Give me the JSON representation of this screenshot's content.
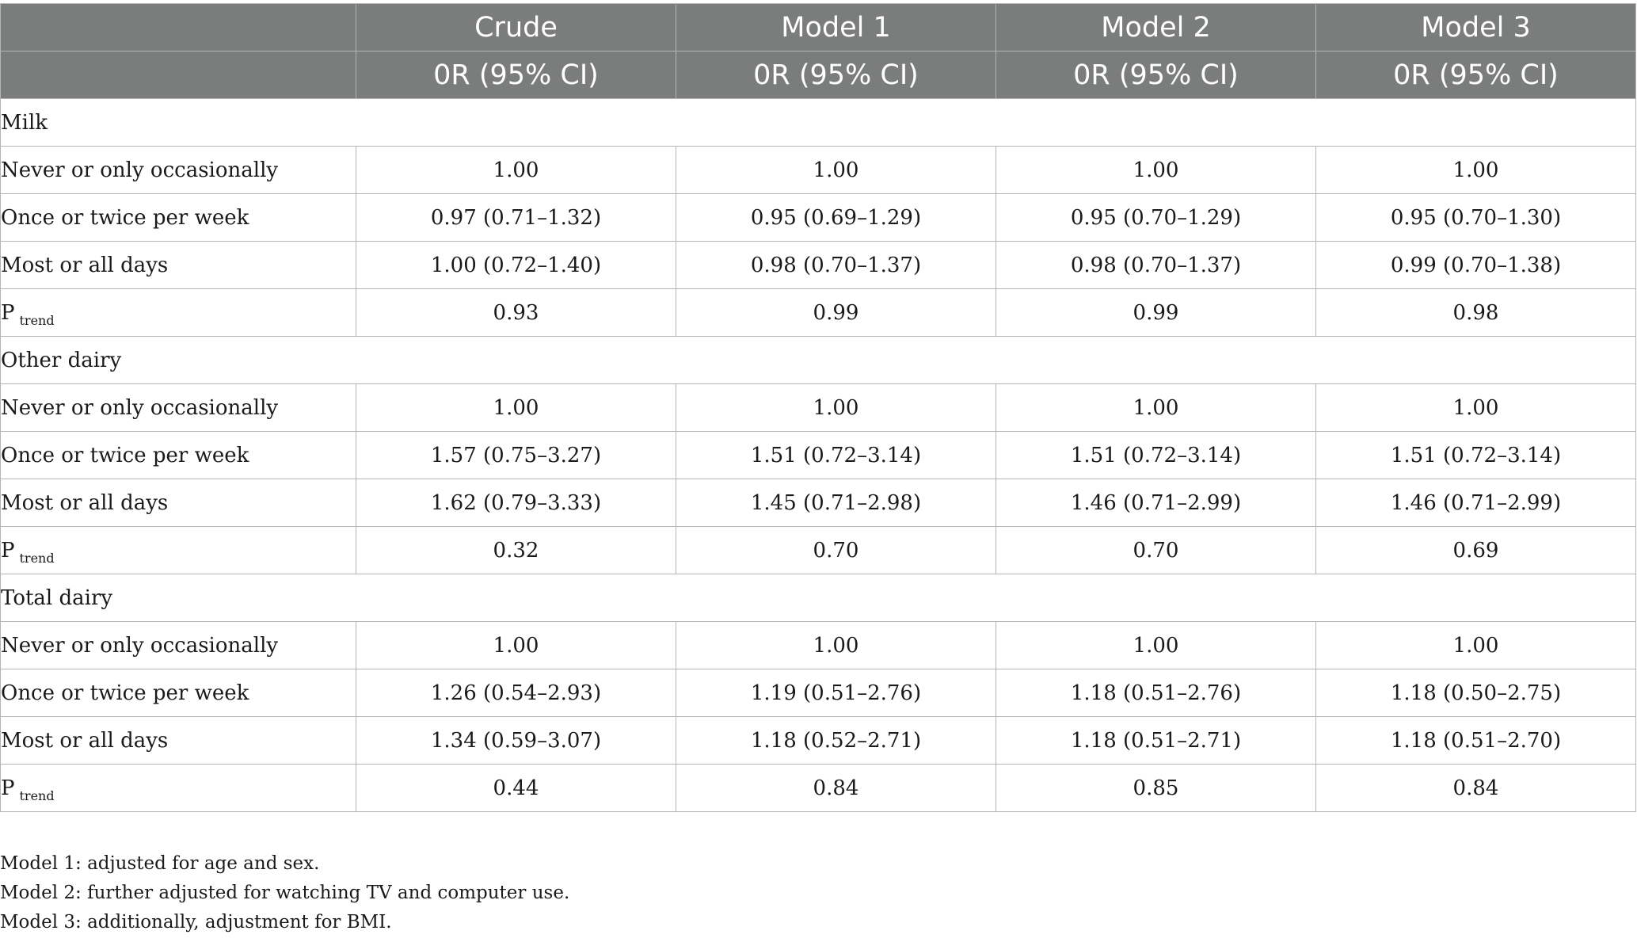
{
  "header": {
    "row1": [
      "",
      "Crude",
      "Model 1",
      "Model 2",
      "Model 3"
    ],
    "row2": [
      "",
      "0R (95% CI)",
      "0R (95% CI)",
      "0R (95% CI)",
      "0R (95% CI)"
    ]
  },
  "groups": [
    {
      "label": "Milk",
      "rows": [
        {
          "label": "Never or only occasionally",
          "values": [
            "1.00",
            "1.00",
            "1.00",
            "1.00"
          ]
        },
        {
          "label": "Once or twice per week",
          "values": [
            "0.97 (0.71–1.32)",
            "0.95 (0.69–1.29)",
            "0.95 (0.70–1.29)",
            "0.95 (0.70–1.30)"
          ]
        },
        {
          "label": "Most or all days",
          "values": [
            "1.00 (0.72–1.40)",
            "0.98 (0.70–1.37)",
            "0.98 (0.70–1.37)",
            "0.99 (0.70–1.38)"
          ]
        }
      ],
      "ptrend": {
        "label": "P",
        "subscript": "trend",
        "values": [
          "0.93",
          "0.99",
          "0.99",
          "0.98"
        ]
      }
    },
    {
      "label": "Other dairy",
      "rows": [
        {
          "label": "Never or only occasionally",
          "values": [
            "1.00",
            "1.00",
            "1.00",
            "1.00"
          ]
        },
        {
          "label": "Once or twice per week",
          "values": [
            "1.57 (0.75–3.27)",
            "1.51 (0.72–3.14)",
            "1.51 (0.72–3.14)",
            "1.51 (0.72–3.14)"
          ]
        },
        {
          "label": "Most or all days",
          "values": [
            "1.62 (0.79–3.33)",
            "1.45 (0.71–2.98)",
            "1.46 (0.71–2.99)",
            "1.46 (0.71–2.99)"
          ]
        }
      ],
      "ptrend": {
        "label": "P",
        "subscript": "trend",
        "values": [
          "0.32",
          "0.70",
          "0.70",
          "0.69"
        ]
      }
    },
    {
      "label": "Total dairy",
      "rows": [
        {
          "label": "Never or only occasionally",
          "values": [
            "1.00",
            "1.00",
            "1.00",
            "1.00"
          ]
        },
        {
          "label": "Once or twice per week",
          "values": [
            "1.26 (0.54–2.93)",
            "1.19 (0.51–2.76)",
            "1.18 (0.51–2.76)",
            "1.18 (0.50–2.75)"
          ]
        },
        {
          "label": "Most or all days",
          "values": [
            "1.34 (0.59–3.07)",
            "1.18 (0.52–2.71)",
            "1.18 (0.51–2.71)",
            "1.18 (0.51–2.70)"
          ]
        }
      ],
      "ptrend": {
        "label": "P",
        "subscript": "trend",
        "values": [
          "0.44",
          "0.84",
          "0.85",
          "0.84"
        ]
      }
    }
  ],
  "footnotes": [
    "Model 1: adjusted for age and sex.",
    "Model 2: further adjusted for watching TV and computer use.",
    "Model 3: additionally, adjustment for BMI."
  ]
}
